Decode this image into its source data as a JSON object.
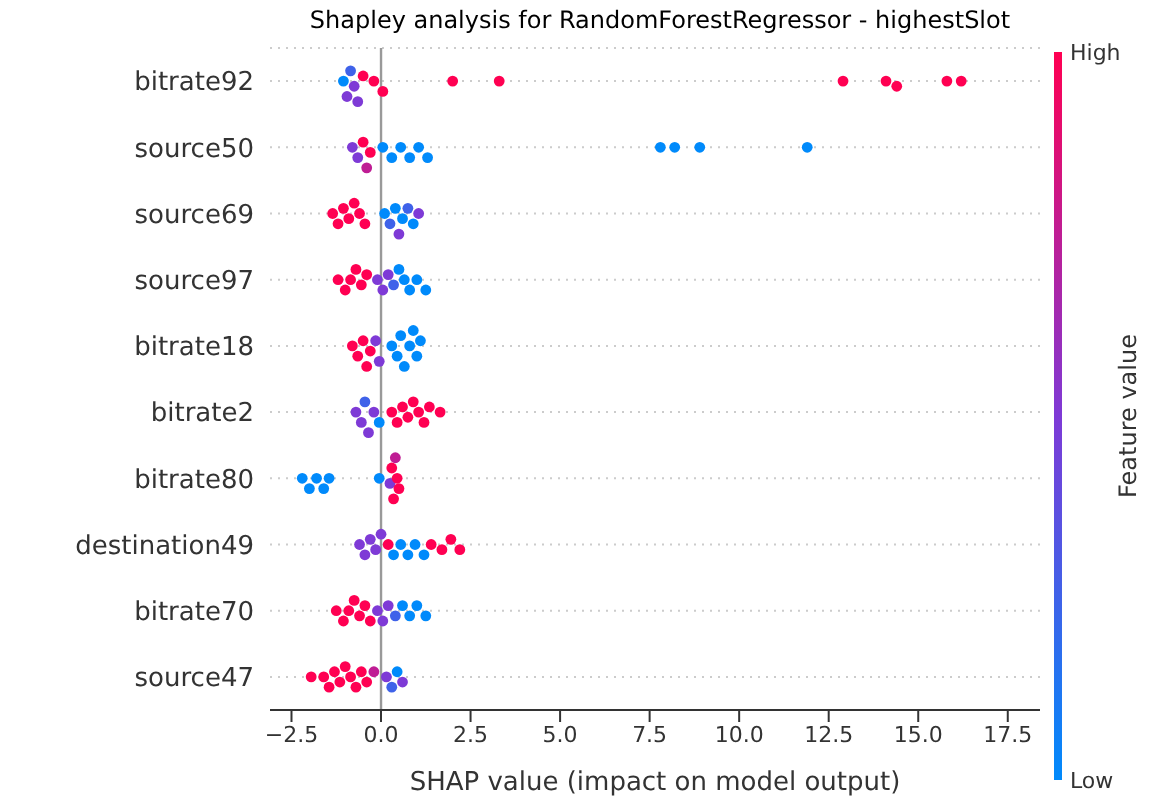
{
  "chart_data": {
    "type": "scatter",
    "title": "Shapley analysis for RandomForestRegressor - highestSlot",
    "xlabel": "SHAP value (impact on model output)",
    "clabel": "Feature value",
    "orientation": "horizontal",
    "marker": "circle",
    "grid": "y",
    "categories": [
      "bitrate92",
      "source50",
      "source69",
      "source97",
      "bitrate18",
      "bitrate2",
      "bitrate80",
      "destination49",
      "bitrate70",
      "source47"
    ],
    "xlim": [
      -3.1,
      18.4
    ],
    "xticks": [
      {
        "value": -2.5,
        "label": "−2.5"
      },
      {
        "value": 0,
        "label": "0.0"
      },
      2.5,
      {
        "value": 5,
        "label": "5.0"
      },
      7.5,
      {
        "value": 10,
        "label": "10.0"
      },
      12.5,
      {
        "value": 15,
        "label": "15.0"
      },
      17.5
    ],
    "clim": [
      0,
      1
    ],
    "cticks": [
      {
        "value": 0,
        "label": "Low"
      },
      {
        "value": 1,
        "label": "High"
      }
    ],
    "ref_lines": [
      {
        "axis": "x",
        "value": 0,
        "color": "#999999"
      }
    ],
    "series": [
      {
        "values": [
          -1.05,
          -0.8,
          -1.35,
          -1.2,
          -0.8,
          -0.7,
          -2.2,
          -0.6,
          -1.25,
          -1.95
        ],
        "colors": [
          "#008afb",
          "#7e3ad6",
          "#ff0052",
          "#ff0052",
          "#ff0052",
          "#7e3ad6",
          "#008afb",
          "#7e3ad6",
          "#ff0052",
          "#ff0052"
        ]
      },
      {
        "values": [
          -0.95,
          -0.65,
          -1.2,
          -1.0,
          -0.65,
          -0.55,
          -2.0,
          -0.45,
          -1.05,
          -1.6
        ],
        "colors": [
          "#7e3ad6",
          "#7e3ad6",
          "#ff0052",
          "#ff0052",
          "#ff0052",
          "#7e3ad6",
          "#008afb",
          "#7e3ad6",
          "#ff0052",
          "#ff0052"
        ]
      },
      {
        "values": [
          -0.85,
          -0.5,
          -1.05,
          -0.85,
          -0.5,
          -0.45,
          -1.8,
          -0.3,
          -0.9,
          -1.45
        ],
        "colors": [
          "#3f62e9",
          "#ff0052",
          "#ff0052",
          "#ff0052",
          "#ff0052",
          "#3f62e9",
          "#008afb",
          "#7e3ad6",
          "#ff0052",
          "#ff0052"
        ]
      },
      {
        "values": [
          -0.75,
          -0.4,
          -0.9,
          -0.7,
          -0.4,
          -0.35,
          -1.6,
          -0.15,
          -0.75,
          -1.3
        ],
        "colors": [
          "#7e3ad6",
          "#bf1d94",
          "#ff0052",
          "#ff0052",
          "#ff0052",
          "#7e3ad6",
          "#008afb",
          "#7e3ad6",
          "#ff0052",
          "#ff0052"
        ]
      },
      {
        "values": [
          -0.65,
          -0.3,
          -0.75,
          -0.55,
          -0.3,
          -0.2,
          -1.45,
          0.0,
          -0.6,
          -1.15
        ],
        "colors": [
          "#7e3ad6",
          "#ff0052",
          "#ff0052",
          "#ff0052",
          "#ff0052",
          "#7e3ad6",
          "#008afb",
          "#7e3ad6",
          "#ff0052",
          "#ff0052"
        ]
      },
      {
        "values": [
          -0.5,
          0.05,
          -0.6,
          -0.4,
          -0.15,
          -0.05,
          -0.05,
          0.2,
          -0.45,
          -1.0
        ],
        "colors": [
          "#ff0052",
          "#008afb",
          "#ff0052",
          "#ff0052",
          "#7e3ad6",
          "#008afb",
          "#008afb",
          "#ff0052",
          "#ff0052",
          "#ff0052"
        ]
      },
      {
        "values": [
          -0.2,
          0.3,
          -0.45,
          -0.1,
          -0.05,
          0.3,
          0.25,
          0.35,
          -0.3,
          -0.85
        ],
        "colors": [
          "#ff0052",
          "#008afb",
          "#ff0052",
          "#7e3ad6",
          "#7e3ad6",
          "#ff0052",
          "#7e3ad6",
          "#008afb",
          "#ff0052",
          "#ff0052"
        ]
      },
      {
        "values": [
          0.05,
          0.55,
          0.1,
          0.05,
          0.3,
          0.45,
          0.3,
          0.55,
          -0.1,
          -0.7
        ],
        "colors": [
          "#ff0052",
          "#008afb",
          "#008afb",
          "#7e3ad6",
          "#008afb",
          "#ff0052",
          "#ff0052",
          "#008afb",
          "#7e3ad6",
          "#ff0052"
        ]
      },
      {
        "values": [
          2.0,
          0.8,
          0.25,
          0.2,
          0.45,
          0.6,
          0.35,
          0.75,
          0.05,
          -0.55
        ],
        "colors": [
          "#ff0052",
          "#008afb",
          "#3f62e9",
          "#7e3ad6",
          "#008afb",
          "#ff0052",
          "#ff0052",
          "#008afb",
          "#7e3ad6",
          "#ff0052"
        ]
      },
      {
        "values": [
          3.3,
          1.05,
          0.4,
          0.35,
          0.55,
          0.75,
          0.4,
          0.95,
          0.2,
          -0.4
        ],
        "colors": [
          "#ff0052",
          "#008afb",
          "#008afb",
          "#3f62e9",
          "#008afb",
          "#ff0052",
          "#bf1d94",
          "#008afb",
          "#7e3ad6",
          "#ff0052"
        ]
      },
      {
        "values": [
          12.9,
          1.3,
          0.5,
          0.5,
          0.65,
          0.9,
          0.45,
          1.2,
          0.4,
          -0.2
        ],
        "colors": [
          "#ff0052",
          "#008afb",
          "#7e3ad6",
          "#008afb",
          "#008afb",
          "#ff0052",
          "#ff0052",
          "#008afb",
          "#3f62e9",
          "#bf1d94"
        ]
      },
      {
        "values": [
          14.1,
          7.8,
          0.6,
          0.65,
          0.8,
          1.05,
          0.5,
          1.4,
          0.6,
          0.15
        ],
        "colors": [
          "#ff0052",
          "#008afb",
          "#008afb",
          "#008afb",
          "#008afb",
          "#ff0052",
          "#ff0052",
          "#ff0052",
          "#008afb",
          "#7e3ad6"
        ]
      },
      {
        "values": [
          14.4,
          8.2,
          0.75,
          0.8,
          0.9,
          1.2,
          null,
          1.7,
          0.8,
          0.3
        ],
        "colors": [
          "#ff0052",
          "#008afb",
          "#3f62e9",
          "#008afb",
          "#008afb",
          "#ff0052",
          null,
          "#ff0052",
          "#008afb",
          "#3f62e9"
        ]
      },
      {
        "values": [
          15.8,
          8.9,
          0.9,
          1.0,
          1.0,
          1.35,
          null,
          1.95,
          1.0,
          0.45
        ],
        "colors": [
          "#ff0052",
          "#008afb",
          "#008afb",
          "#008afb",
          "#008afb",
          "#ff0052",
          null,
          "#ff0052",
          "#008afb",
          "#008afb"
        ]
      },
      {
        "values": [
          16.2,
          11.9,
          1.05,
          1.25,
          1.1,
          1.65,
          null,
          2.2,
          1.25,
          0.6
        ],
        "colors": [
          "#ff0052",
          "#008afb",
          "#7e3ad6",
          "#008afb",
          "#008afb",
          "#ff0052",
          null,
          "#ff0052",
          "#008afb",
          "#7e3ad6"
        ]
      }
    ]
  }
}
